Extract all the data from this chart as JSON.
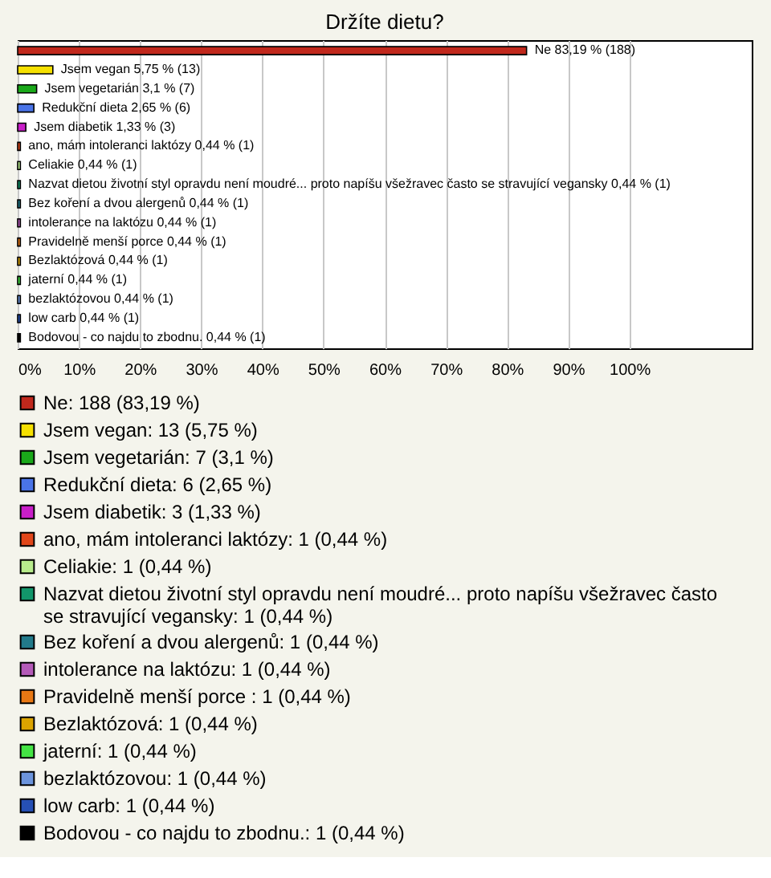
{
  "chart_data": {
    "type": "bar",
    "orientation": "horizontal",
    "title": "Držíte dietu?",
    "categories": [
      "Ne",
      "Jsem vegan",
      "Jsem vegetarián",
      "Redukční dieta",
      "Jsem diabetik",
      "ano, mám intoleranci laktózy",
      "Celiakie",
      "Nazvat dietou životní styl opravdu není moudré... proto napíšu všežravec často se stravující vegansky",
      "Bez koření a dvou alergenů",
      "intolerance na laktózu",
      "Pravidelně menší porce ",
      "Bezlaktózová",
      "jaterní",
      "bezlaktózovou",
      "low carb",
      "Bodovou - co najdu to zbodnu."
    ],
    "series": [
      {
        "name": "Ne: 188 (83,19 %)",
        "color": "#c0281c",
        "values": [
          83.19,
          null,
          null,
          null,
          null,
          null,
          null,
          null,
          null,
          null,
          null,
          null,
          null,
          null,
          null,
          null
        ]
      },
      {
        "name": "Jsem vegan: 13 (5,75 %)",
        "color": "#f5e000",
        "values": [
          null,
          5.75,
          null,
          null,
          null,
          null,
          null,
          null,
          null,
          null,
          null,
          null,
          null,
          null,
          null,
          null
        ]
      },
      {
        "name": "Jsem vegetarián: 7 (3,1 %)",
        "color": "#1aa81a",
        "values": [
          null,
          null,
          3.1,
          null,
          null,
          null,
          null,
          null,
          null,
          null,
          null,
          null,
          null,
          null,
          null,
          null
        ]
      },
      {
        "name": "Redukční dieta: 6 (2,65 %)",
        "color": "#4a74e8",
        "values": [
          null,
          null,
          null,
          2.65,
          null,
          null,
          null,
          null,
          null,
          null,
          null,
          null,
          null,
          null,
          null,
          null
        ]
      },
      {
        "name": "Jsem diabetik: 3 (1,33 %)",
        "color": "#c81ec8",
        "values": [
          null,
          null,
          null,
          null,
          1.33,
          null,
          null,
          null,
          null,
          null,
          null,
          null,
          null,
          null,
          null,
          null
        ]
      },
      {
        "name": "ano, mám intoleranci laktózy: 1 (0,44 %)",
        "color": "#e0461a",
        "values": [
          null,
          null,
          null,
          null,
          null,
          0.44,
          null,
          null,
          null,
          null,
          null,
          null,
          null,
          null,
          null,
          null
        ]
      },
      {
        "name": "Celiakie: 1 (0,44 %)",
        "color": "#b8ec8c",
        "values": [
          null,
          null,
          null,
          null,
          null,
          null,
          0.44,
          null,
          null,
          null,
          null,
          null,
          null,
          null,
          null,
          null
        ]
      },
      {
        "name": "Nazvat dietou životní styl opravdu není moudré... proto napíšu všežravec často se stravující vegansky: 1 (0,44 %)",
        "color": "#12966a",
        "values": [
          null,
          null,
          null,
          null,
          null,
          null,
          null,
          0.44,
          null,
          null,
          null,
          null,
          null,
          null,
          null,
          null
        ]
      },
      {
        "name": "Bez koření a dvou alergenů: 1 (0,44 %)",
        "color": "#227a8a",
        "values": [
          null,
          null,
          null,
          null,
          null,
          null,
          null,
          null,
          0.44,
          null,
          null,
          null,
          null,
          null,
          null,
          null
        ]
      },
      {
        "name": "intolerance na laktózu: 1 (0,44 %)",
        "color": "#b45ab8",
        "values": [
          null,
          null,
          null,
          null,
          null,
          null,
          null,
          null,
          null,
          0.44,
          null,
          null,
          null,
          null,
          null,
          null
        ]
      },
      {
        "name": "Pravidelně menší porce : 1 (0,44 %)",
        "color": "#e87814",
        "values": [
          null,
          null,
          null,
          null,
          null,
          null,
          null,
          null,
          null,
          null,
          0.44,
          null,
          null,
          null,
          null,
          null
        ]
      },
      {
        "name": "Bezlaktózová: 1 (0,44 %)",
        "color": "#dca400",
        "values": [
          null,
          null,
          null,
          null,
          null,
          null,
          null,
          null,
          null,
          null,
          null,
          0.44,
          null,
          null,
          null,
          null
        ]
      },
      {
        "name": "jaterní: 1 (0,44 %)",
        "color": "#44e444",
        "values": [
          null,
          null,
          null,
          null,
          null,
          null,
          null,
          null,
          null,
          null,
          null,
          null,
          0.44,
          null,
          null,
          null
        ]
      },
      {
        "name": "bezlaktózovou: 1 (0,44 %)",
        "color": "#6c94dc",
        "values": [
          null,
          null,
          null,
          null,
          null,
          null,
          null,
          null,
          null,
          null,
          null,
          null,
          null,
          0.44,
          null,
          null
        ]
      },
      {
        "name": "low carb: 1 (0,44 %)",
        "color": "#2650b4",
        "values": [
          null,
          null,
          null,
          null,
          null,
          null,
          null,
          null,
          null,
          null,
          null,
          null,
          null,
          null,
          0.44,
          null
        ]
      },
      {
        "name": "Bodovou - co najdu to zbodnu.: 1 (0,44 %)",
        "color": "#000000",
        "values": [
          null,
          null,
          null,
          null,
          null,
          null,
          null,
          null,
          null,
          null,
          null,
          null,
          null,
          null,
          null,
          0.44
        ]
      }
    ],
    "value_labels": [
      "83,19 % (188)",
      "5,75 % (13)",
      "3,1 % (7)",
      "2,65 % (6)",
      "1,33 % (3)",
      "0,44 % (1)",
      "0,44 % (1)",
      "0,44 % (1)",
      "0,44 % (1)",
      "0,44 % (1)",
      "0,44 % (1)",
      "0,44 % (1)",
      "0,44 % (1)",
      "0,44 % (1)",
      "0,44 % (1)",
      "0,44 % (1)"
    ],
    "xlim": [
      0,
      120
    ],
    "xticks": [
      {
        "value": 0,
        "label": "0%"
      },
      {
        "value": 10,
        "label": "10%"
      },
      {
        "value": 20,
        "label": "20%"
      },
      {
        "value": 30,
        "label": "30%"
      },
      {
        "value": 40,
        "label": "40%"
      },
      {
        "value": 50,
        "label": "50%"
      },
      {
        "value": 60,
        "label": "60%"
      },
      {
        "value": 70,
        "label": "70%"
      },
      {
        "value": 80,
        "label": "80%"
      },
      {
        "value": 90,
        "label": "90%"
      },
      {
        "value": 100,
        "label": "100%"
      }
    ],
    "grid": "x",
    "legend": "bottom"
  }
}
